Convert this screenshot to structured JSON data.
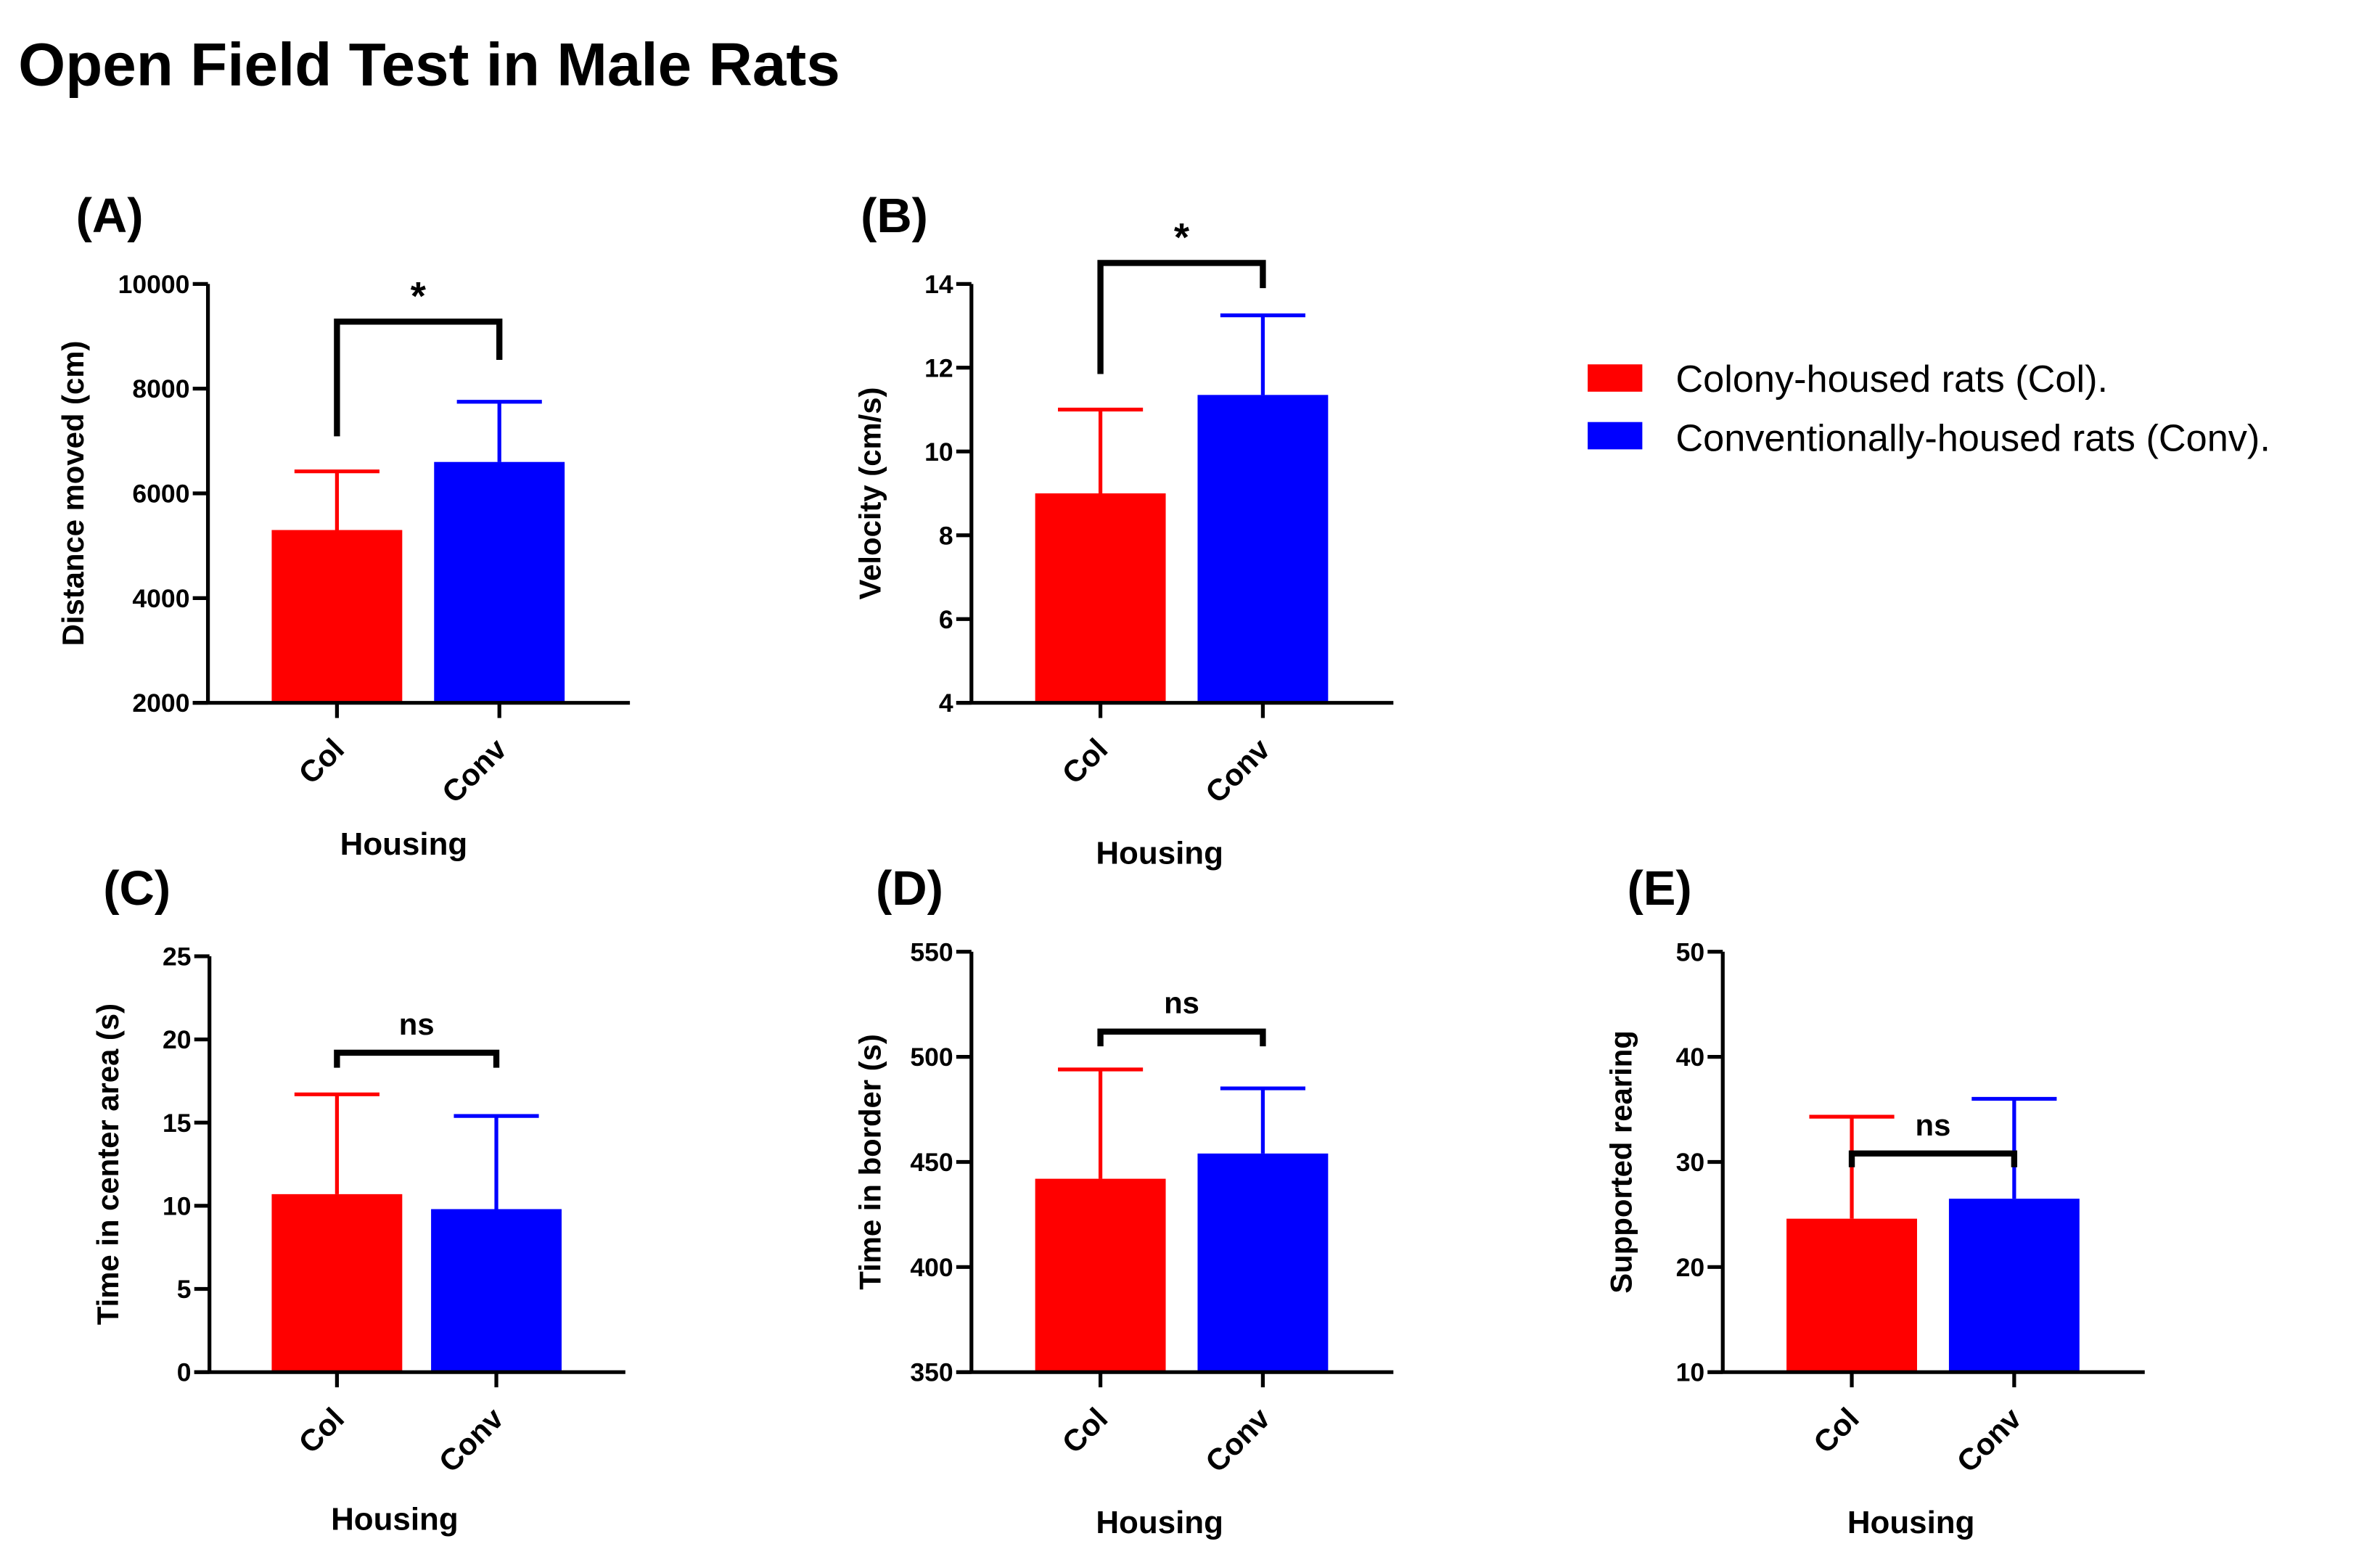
{
  "title": "Open Field Test in Male Rats",
  "legend": [
    {
      "label": "Colony-housed rats (Col).",
      "color": "#ff0000"
    },
    {
      "label": "Conventionally-housed rats (Conv).",
      "color": "#0000ff"
    }
  ],
  "chart_data": [
    {
      "type": "bar",
      "panel": "(A)",
      "ylabel": "Distance moved (cm)",
      "xlabel": "Housing",
      "categories": [
        "Col",
        "Conv"
      ],
      "values": [
        5300,
        6600
      ],
      "error_upper": [
        6420,
        7750
      ],
      "ylim": [
        2000,
        10000
      ],
      "yticks": [
        "2000",
        "4000",
        "6000",
        "8000",
        "10000"
      ],
      "ytick_values": [
        2000,
        4000,
        6000,
        8000,
        10000
      ],
      "significance": {
        "label": "*",
        "bracket_top": 9280,
        "left_end": 7090,
        "right_end": 8550
      }
    },
    {
      "type": "bar",
      "panel": "(B)",
      "ylabel": "Velocity (cm/s)",
      "xlabel": "Housing",
      "categories": [
        "Col",
        "Conv"
      ],
      "values": [
        9.0,
        11.35
      ],
      "error_upper": [
        11.0,
        13.25
      ],
      "ylim": [
        4,
        14
      ],
      "yticks": [
        "4",
        "6",
        "8",
        "10",
        "12",
        "14"
      ],
      "ytick_values": [
        4,
        6,
        8,
        10,
        12,
        14
      ],
      "significance": {
        "label": "*",
        "bracket_top": 14.5,
        "left_end": 11.85,
        "right_end": 13.9
      }
    },
    {
      "type": "bar",
      "panel": "(C)",
      "ylabel": "Time in center area (s)",
      "xlabel": "Housing",
      "categories": [
        "Col",
        "Conv"
      ],
      "values": [
        10.7,
        9.8
      ],
      "error_upper": [
        16.7,
        15.4
      ],
      "ylim": [
        0,
        25
      ],
      "yticks": [
        "0",
        "5",
        "10",
        "15",
        "20",
        "25"
      ],
      "ytick_values": [
        0,
        5,
        10,
        15,
        20,
        25
      ],
      "significance": {
        "label": "ns",
        "bracket_top": 19.2,
        "left_end": 18.3,
        "right_end": 18.3
      }
    },
    {
      "type": "bar",
      "panel": "(D)",
      "ylabel": "Time in border (s)",
      "xlabel": "Housing",
      "categories": [
        "Col",
        "Conv"
      ],
      "values": [
        442,
        454
      ],
      "error_upper": [
        494,
        485
      ],
      "ylim": [
        350,
        550
      ],
      "yticks": [
        "350",
        "400",
        "450",
        "500",
        "550"
      ],
      "ytick_values": [
        350,
        400,
        450,
        500,
        550
      ],
      "significance": {
        "label": "ns",
        "bracket_top": 512,
        "left_end": 505,
        "right_end": 505
      }
    },
    {
      "type": "bar",
      "panel": "(E)",
      "ylabel": "Supported rearing",
      "xlabel": "Housing",
      "categories": [
        "Col",
        "Conv"
      ],
      "values": [
        24.6,
        26.5
      ],
      "error_upper": [
        34.3,
        36.0
      ],
      "ylim": [
        10,
        50
      ],
      "yticks": [
        "10",
        "20",
        "30",
        "40",
        "50"
      ],
      "ytick_values": [
        10,
        20,
        30,
        40,
        50
      ],
      "significance": {
        "label": "ns",
        "bracket_top": 30.8,
        "left_end": 29.5,
        "right_end": 29.5
      }
    }
  ]
}
